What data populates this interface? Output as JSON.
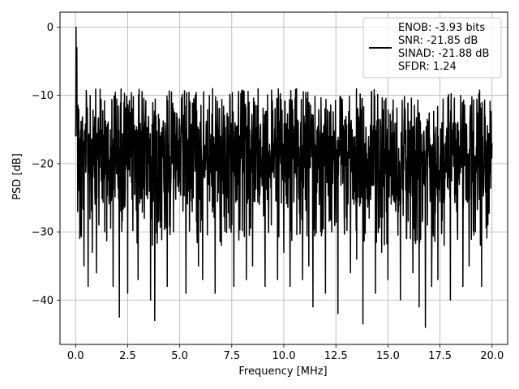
{
  "chart_data": {
    "type": "line",
    "title": "",
    "xlabel": "Frequency [MHz]",
    "ylabel": "PSD [dB]",
    "xlim": [
      -0.75,
      20.75
    ],
    "ylim": [
      -46.5,
      2.2
    ],
    "xticks": [
      0.0,
      2.5,
      5.0,
      7.5,
      10.0,
      12.5,
      15.0,
      17.5,
      20.0
    ],
    "xtick_labels": [
      "0.0",
      "2.5",
      "5.0",
      "7.5",
      "10.0",
      "12.5",
      "15.0",
      "17.5",
      "20.0"
    ],
    "yticks": [
      0,
      -10,
      -20,
      -30,
      -40
    ],
    "ytick_labels": [
      "0",
      "−10",
      "−20",
      "−30",
      "−40"
    ],
    "grid": true,
    "legend_position": "top-right",
    "color": "#000000",
    "legend_lines": [
      "ENOB: -3.93 bits",
      "SNR: -21.85 dB",
      "SINAD: -21.88 dB",
      "SFDR: 1.24"
    ],
    "series": [
      {
        "x": [
          0.0,
          0.02,
          0.04,
          0.06,
          0.08,
          0.1,
          0.15,
          0.2,
          0.3,
          0.4,
          0.5,
          0.6,
          0.7,
          0.8,
          0.9,
          1.0,
          1.2,
          1.4,
          1.6,
          1.8,
          2.0,
          2.1,
          2.3,
          2.5,
          2.7,
          3.0,
          3.3,
          3.6,
          3.8,
          4.1,
          4.4,
          4.7,
          5.0,
          5.3,
          5.6,
          5.9,
          6.1,
          6.4,
          6.7,
          7.0,
          7.3,
          7.6,
          7.9,
          8.2,
          8.5,
          8.8,
          9.1,
          9.4,
          9.7,
          10.0,
          10.3,
          10.6,
          10.9,
          11.2,
          11.4,
          11.7,
          12.0,
          12.3,
          12.6,
          12.9,
          13.2,
          13.5,
          13.8,
          14.1,
          14.4,
          14.7,
          15.0,
          15.3,
          15.6,
          15.9,
          16.2,
          16.5,
          16.8,
          16.9,
          17.1,
          17.4,
          17.7,
          18.0,
          18.3,
          18.6,
          18.9,
          19.2,
          19.5,
          19.8,
          20.0
        ],
        "y": [
          -16,
          0,
          -8,
          -3,
          -14,
          -27,
          -12,
          -31,
          -18,
          -35,
          -20,
          -38,
          -10,
          -33,
          -22,
          -36,
          -15,
          -30,
          -25,
          -38,
          -21,
          -42.5,
          -26,
          -39,
          -19,
          -37,
          -28,
          -40,
          -43,
          -24,
          -38,
          -30,
          -22,
          -39,
          -27,
          -35,
          -37,
          -20,
          -39,
          -32,
          -25,
          -38,
          -21,
          -37,
          -35,
          -24,
          -38,
          -29,
          -37,
          -33,
          -38,
          -22,
          -37,
          -35,
          -41,
          -26,
          -39,
          -30,
          -42,
          -27,
          -36,
          -34,
          -43.5,
          -28,
          -39,
          -33,
          -37,
          -25,
          -40,
          -31,
          -36,
          -41,
          -44,
          -29,
          -38,
          -37,
          -32,
          -40,
          -27,
          -38,
          -35,
          -30,
          -38,
          -29,
          -17
        ]
      }
    ]
  }
}
